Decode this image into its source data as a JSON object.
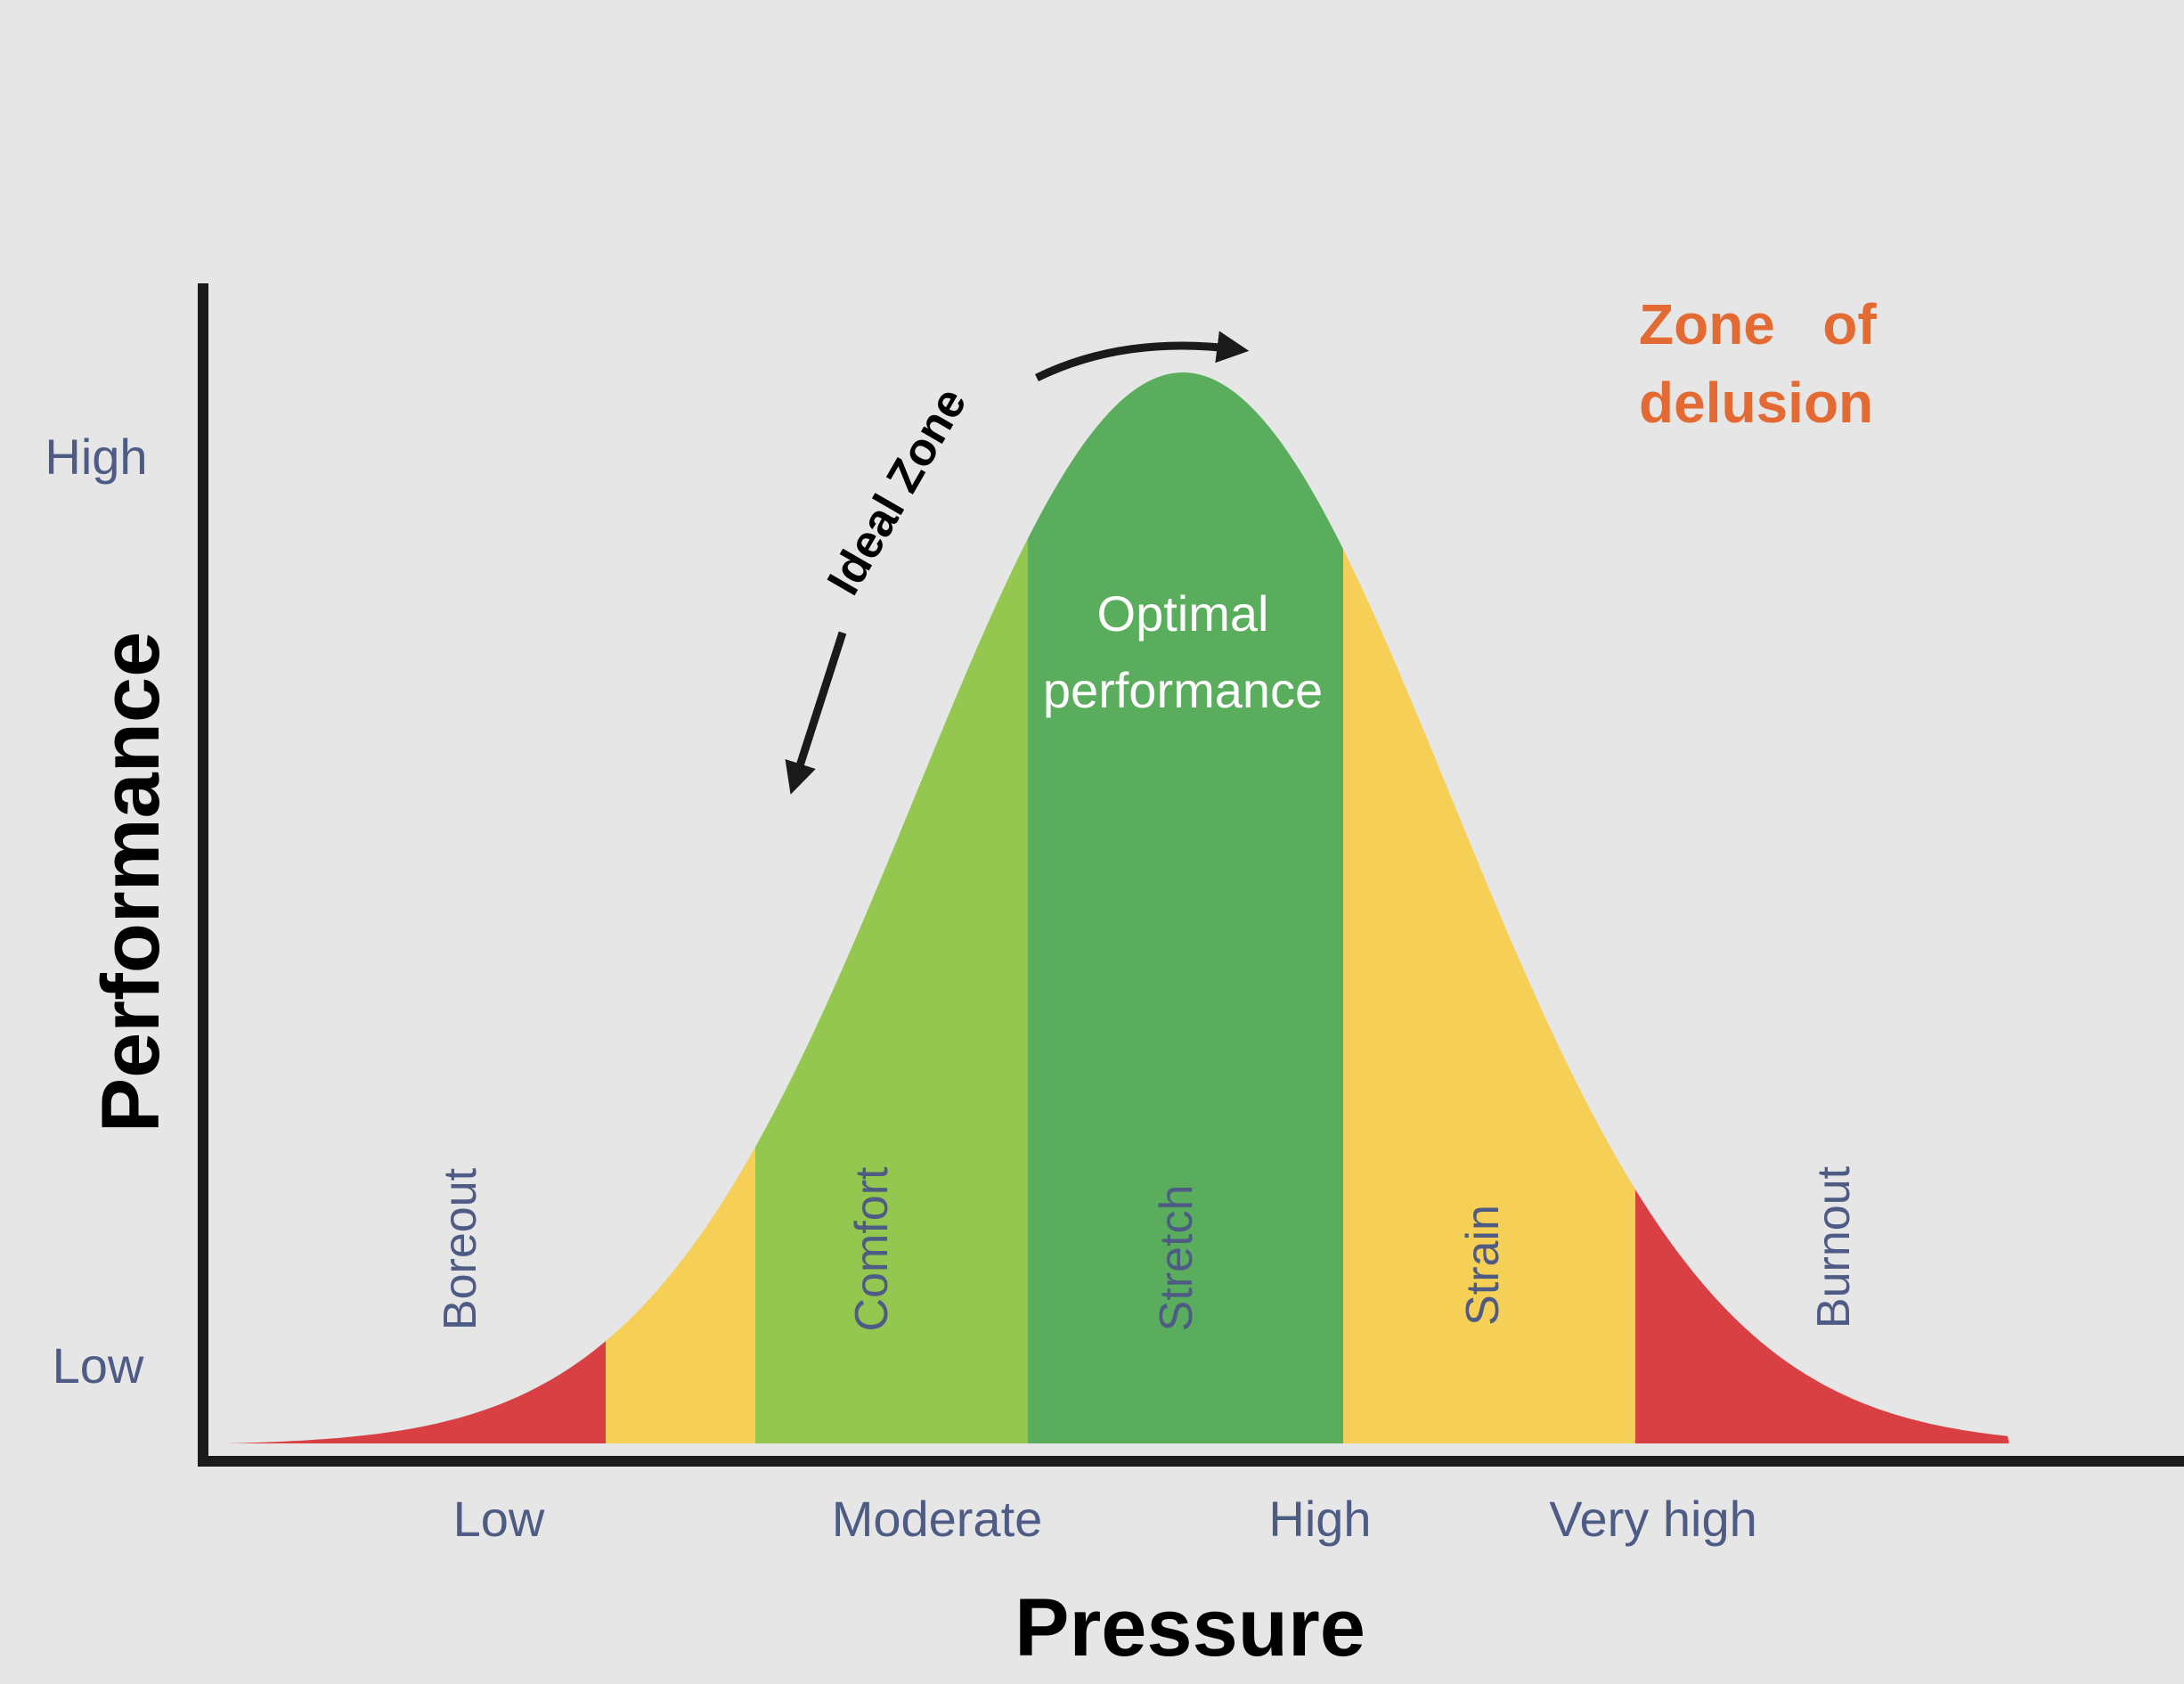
{
  "axes": {
    "y_title": "Performance",
    "x_title": "Pressure",
    "y_ticks": {
      "high": "High",
      "low": "Low"
    },
    "x_ticks": [
      "Low",
      "Moderate",
      "High",
      "Very high"
    ]
  },
  "zones": [
    {
      "id": "boreout",
      "label": "Boreout",
      "color": "#d84044"
    },
    {
      "id": "transition-left",
      "label": "",
      "color": "#f6cf56"
    },
    {
      "id": "comfort",
      "label": "Comfort",
      "color": "#93c750"
    },
    {
      "id": "optimal",
      "label": "Stretch",
      "color": "#59ad5c"
    },
    {
      "id": "strain",
      "label": "Strain",
      "color": "#f6cf56"
    },
    {
      "id": "burnout",
      "label": "Burnout",
      "color": "#d84044"
    }
  ],
  "annotations": {
    "optimal_line1": "Optimal",
    "optimal_line2": "performance",
    "ideal_zone": "Ideal Zone",
    "delusion_line1": "Zone   of",
    "delusion_line2": "delusion"
  },
  "colors": {
    "label_text": "#4d5b85",
    "axis": "#1a1a1a",
    "delusion": "#e36a33",
    "white_text": "#ffffff"
  }
}
